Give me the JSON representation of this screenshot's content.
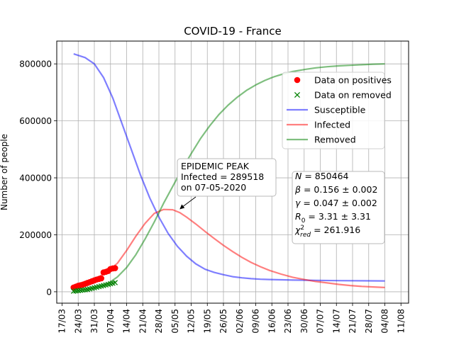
{
  "chart_data": {
    "type": "line",
    "title": "COVID-19 - France",
    "xlabel": "",
    "ylabel": "Number of people",
    "x_tick_labels": [
      "17/03",
      "24/03",
      "31/03",
      "07/04",
      "14/04",
      "21/04",
      "28/04",
      "05/05",
      "12/05",
      "19/05",
      "26/05",
      "02/06",
      "09/06",
      "16/06",
      "23/06",
      "30/06",
      "07/07",
      "14/07",
      "21/07",
      "28/07",
      "04/08",
      "11/08"
    ],
    "y_tick_labels": [
      "0",
      "200000",
      "400000",
      "600000",
      "800000"
    ],
    "ylim": [
      -40000,
      880000
    ],
    "xlim_days_from_first_tick": [
      0,
      147
    ],
    "grid": true,
    "legend": {
      "placement": "upper right",
      "entries": [
        {
          "label": "Data on positives",
          "marker": "o",
          "color": "#ff0000"
        },
        {
          "label": "Data on removed",
          "marker": "x",
          "color": "#008000"
        },
        {
          "label": "Susceptible",
          "color": "#0000ff"
        },
        {
          "label": "Infected",
          "color": "#ff0000"
        },
        {
          "label": "Removed",
          "color": "#008000"
        }
      ]
    },
    "annotation": {
      "lines": [
        "EPIDEMIC PEAK",
        "Infected = 289518",
        "on 07-05-2020"
      ],
      "arrow_to": {
        "date": "07/05",
        "value": 289518
      }
    },
    "params_box": [
      {
        "name": "N",
        "rest": " = 850464"
      },
      {
        "name": "β",
        "rest": " = 0.156 ± 0.002"
      },
      {
        "name": "γ",
        "rest": " = 0.047 ± 0.002"
      },
      {
        "name": "R",
        "sub": "0",
        "rest": " = 3.31 ± 3.31"
      },
      {
        "name": "χ",
        "sup": "2",
        "sub": "red",
        "rest": " = 261.916"
      }
    ],
    "series": [
      {
        "name": "Susceptible",
        "style": "line",
        "color": "#0000ff",
        "x_days": [
          5,
          10,
          14,
          18,
          22,
          26,
          30,
          34,
          38,
          42,
          46,
          50,
          54,
          58,
          62,
          66,
          70,
          74,
          78,
          82,
          86,
          90,
          95,
          100,
          110,
          120,
          130,
          140
        ],
        "values": [
          835000,
          822000,
          800000,
          752000,
          680000,
          590000,
          500000,
          410000,
          330000,
          262000,
          205000,
          160000,
          125000,
          98000,
          79000,
          68000,
          60000,
          53000,
          49000,
          46000,
          44000,
          43000,
          42000,
          41000,
          40000,
          39000,
          38500,
          38000
        ]
      },
      {
        "name": "Infected",
        "style": "line",
        "color": "#ff0000",
        "x_days": [
          5,
          10,
          14,
          18,
          21,
          24,
          28,
          32,
          36,
          40,
          44,
          48,
          51,
          54,
          58,
          62,
          66,
          70,
          74,
          78,
          82,
          86,
          90,
          95,
          100,
          105,
          110,
          115,
          120,
          125,
          130,
          135,
          140
        ],
        "values": [
          14000,
          30000,
          45000,
          62000,
          80000,
          100000,
          145000,
          195000,
          240000,
          275000,
          289000,
          288000,
          278000,
          262000,
          238000,
          212000,
          187000,
          163000,
          141000,
          121000,
          103000,
          88000,
          75000,
          62000,
          51000,
          43000,
          36000,
          31000,
          26000,
          22000,
          19000,
          17000,
          15000
        ]
      },
      {
        "name": "Removed",
        "style": "line",
        "color": "#008000",
        "x_days": [
          5,
          10,
          14,
          18,
          21,
          24,
          28,
          32,
          36,
          40,
          44,
          48,
          52,
          56,
          60,
          64,
          68,
          72,
          76,
          80,
          84,
          88,
          92,
          96,
          100,
          105,
          110,
          115,
          120,
          125,
          130,
          135,
          140
        ],
        "values": [
          3000,
          8000,
          14000,
          22000,
          35000,
          52000,
          85000,
          130000,
          185000,
          245000,
          310000,
          370000,
          430000,
          485000,
          537000,
          582000,
          622000,
          655000,
          683000,
          707000,
          726000,
          742000,
          755000,
          765000,
          773000,
          780000,
          786000,
          790000,
          793000,
          795000,
          797000,
          799000,
          800000
        ]
      },
      {
        "name": "Data on positives",
        "style": "points",
        "marker": "o",
        "color": "#ff0000",
        "x_days": [
          5,
          6,
          7,
          8,
          9,
          10,
          11,
          12,
          13,
          14,
          15,
          16,
          17,
          18,
          19,
          20,
          21,
          22,
          23
        ],
        "values": [
          15000,
          18000,
          21000,
          23000,
          25000,
          28000,
          31000,
          34000,
          37000,
          40000,
          43000,
          45000,
          47000,
          68000,
          70000,
          73000,
          80000,
          82000,
          83000
        ]
      },
      {
        "name": "Data on removed",
        "style": "points",
        "marker": "x",
        "color": "#008000",
        "x_days": [
          5,
          6,
          7,
          8,
          9,
          10,
          11,
          12,
          13,
          14,
          15,
          16,
          17,
          18,
          19,
          20,
          21,
          22,
          23
        ],
        "values": [
          2000,
          3000,
          4000,
          5000,
          6000,
          7000,
          8000,
          10000,
          12000,
          14000,
          16000,
          18000,
          20000,
          22000,
          24000,
          26000,
          28000,
          30000,
          32000
        ]
      }
    ]
  }
}
